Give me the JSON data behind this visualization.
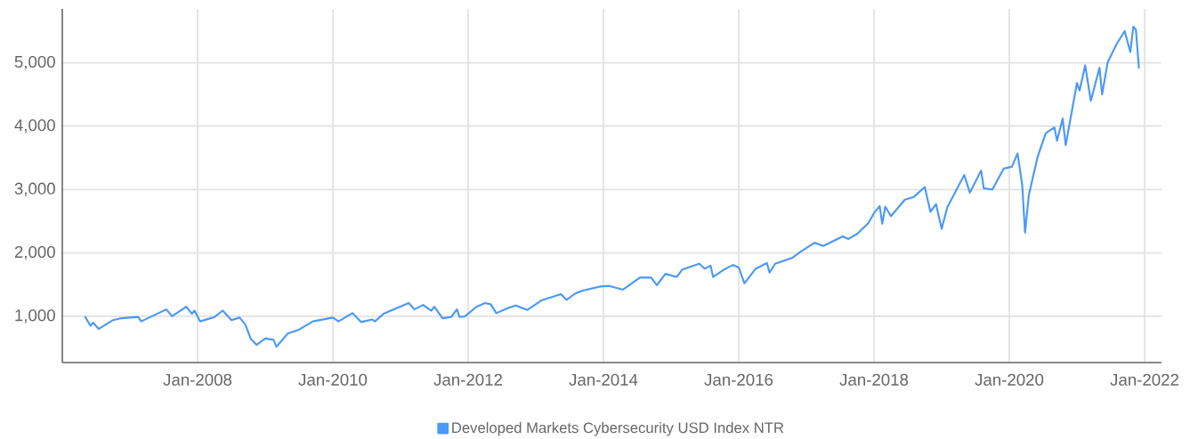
{
  "chart_data": {
    "type": "line",
    "x": [
      "2006-05-01",
      "2006-06-01",
      "2006-06-15",
      "2006-07-15",
      "2006-10-01",
      "2006-11-15",
      "2007-02-15",
      "2007-03-01",
      "2007-07-15",
      "2007-08-15",
      "2007-11-01",
      "2007-12-01",
      "2007-12-15",
      "2008-01-15",
      "2008-04-01",
      "2008-05-15",
      "2008-07-01",
      "2008-08-15",
      "2008-09-15",
      "2008-10-15",
      "2008-11-15",
      "2009-01-01",
      "2009-02-15",
      "2009-03-01",
      "2009-05-01",
      "2009-07-01",
      "2009-09-15",
      "2010-01-01",
      "2010-02-01",
      "2010-04-15",
      "2010-06-01",
      "2010-08-01",
      "2010-08-15",
      "2010-10-01",
      "2011-02-15",
      "2011-03-15",
      "2011-05-01",
      "2011-06-15",
      "2011-07-01",
      "2011-08-15",
      "2011-10-01",
      "2011-11-01",
      "2011-11-15",
      "2011-12-15",
      "2012-02-15",
      "2012-04-01",
      "2012-05-01",
      "2012-06-01",
      "2012-08-01",
      "2012-09-15",
      "2012-11-15",
      "2013-02-01",
      "2013-05-15",
      "2013-06-15",
      "2013-08-01",
      "2013-09-15",
      "2013-12-15",
      "2014-02-01",
      "2014-04-15",
      "2014-07-15",
      "2014-09-15",
      "2014-10-15",
      "2014-12-01",
      "2015-02-01",
      "2015-03-01",
      "2015-06-01",
      "2015-07-01",
      "2015-08-01",
      "2015-08-15",
      "2015-10-15",
      "2015-12-01",
      "2016-01-01",
      "2016-02-01",
      "2016-04-01",
      "2016-06-01",
      "2016-06-15",
      "2016-07-15",
      "2016-10-15",
      "2016-12-01",
      "2017-02-15",
      "2017-04-01",
      "2017-07-15",
      "2017-08-15",
      "2017-10-01",
      "2017-12-01",
      "2018-01-01",
      "2018-02-01",
      "2018-02-15",
      "2018-03-01",
      "2018-04-01",
      "2018-06-15",
      "2018-08-01",
      "2018-10-01",
      "2018-11-01",
      "2018-12-01",
      "2019-01-01",
      "2019-02-01",
      "2019-05-01",
      "2019-06-01",
      "2019-08-01",
      "2019-08-15",
      "2019-10-01",
      "2019-12-01",
      "2020-01-15",
      "2020-02-15",
      "2020-03-10",
      "2020-03-25",
      "2020-04-15",
      "2020-06-01",
      "2020-07-15",
      "2020-09-01",
      "2020-09-15",
      "2020-10-15",
      "2020-11-01",
      "2021-01-01",
      "2021-01-15",
      "2021-02-15",
      "2021-03-15",
      "2021-05-01",
      "2021-05-15",
      "2021-06-15",
      "2021-08-01",
      "2021-09-15",
      "2021-10-15",
      "2021-11-01",
      "2021-11-15",
      "2021-12-01"
    ],
    "series": [
      {
        "name": "Developed Markets Cybersecurity USD Index NTR",
        "color": "#4a98f7",
        "values": [
          1000,
          850,
          900,
          800,
          940,
          970,
          990,
          920,
          1110,
          1000,
          1150,
          1040,
          1090,
          920,
          990,
          1090,
          940,
          980,
          870,
          640,
          550,
          650,
          630,
          520,
          730,
          790,
          920,
          980,
          920,
          1050,
          910,
          950,
          920,
          1040,
          1210,
          1110,
          1180,
          1090,
          1150,
          970,
          990,
          1110,
          990,
          1000,
          1150,
          1210,
          1190,
          1050,
          1130,
          1170,
          1100,
          1250,
          1350,
          1260,
          1360,
          1410,
          1470,
          1480,
          1420,
          1610,
          1610,
          1490,
          1670,
          1620,
          1740,
          1830,
          1750,
          1800,
          1620,
          1740,
          1810,
          1770,
          1520,
          1750,
          1840,
          1690,
          1830,
          1920,
          2020,
          2160,
          2110,
          2260,
          2220,
          2300,
          2470,
          2630,
          2740,
          2460,
          2730,
          2580,
          2840,
          2880,
          3040,
          2650,
          2770,
          2380,
          2720,
          3230,
          2950,
          3300,
          3020,
          3000,
          3330,
          3360,
          3570,
          3070,
          2320,
          2910,
          3510,
          3890,
          3980,
          3770,
          4120,
          3700,
          4680,
          4560,
          4960,
          4400,
          4920,
          4500,
          5010,
          5290,
          5500,
          5170,
          5570,
          5520,
          4910
        ]
      }
    ],
    "xlim": [
      "2006-01-01",
      "2022-04-01"
    ],
    "xticks": [
      {
        "value": "2008-01-01",
        "label": "Jan-2008"
      },
      {
        "value": "2010-01-01",
        "label": "Jan-2010"
      },
      {
        "value": "2012-01-01",
        "label": "Jan-2012"
      },
      {
        "value": "2014-01-01",
        "label": "Jan-2014"
      },
      {
        "value": "2016-01-01",
        "label": "Jan-2016"
      },
      {
        "value": "2018-01-01",
        "label": "Jan-2018"
      },
      {
        "value": "2020-01-01",
        "label": "Jan-2020"
      },
      {
        "value": "2022-01-01",
        "label": "Jan-2022"
      }
    ],
    "ylim": [
      270,
      5850
    ],
    "yticks": [
      {
        "value": 1000,
        "label": "1,000"
      },
      {
        "value": 2000,
        "label": "2,000"
      },
      {
        "value": 3000,
        "label": "3,000"
      },
      {
        "value": 4000,
        "label": "4,000"
      },
      {
        "value": 5000,
        "label": "5,000"
      }
    ],
    "grid": true,
    "legend": "bottom",
    "line_style": "solid"
  }
}
